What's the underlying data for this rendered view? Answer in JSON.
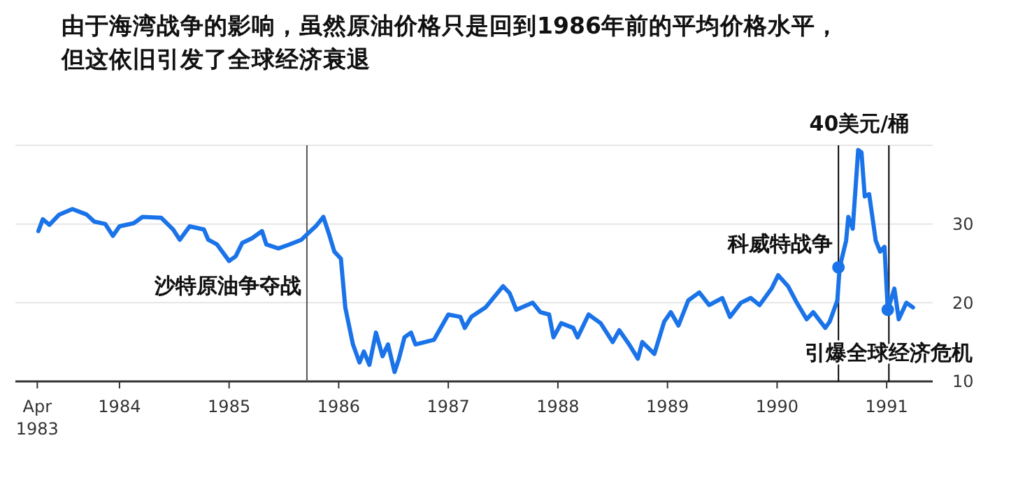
{
  "chart_data": {
    "type": "line",
    "title": "由于海湾战争的影响，虽然原油价格只是回到1986年前的平均价格水平，",
    "subtitle": "但这依旧引发了全球经济衰退",
    "xlim": [
      1983.05,
      1991.42
    ],
    "xticks": [
      {
        "value": 1983.25,
        "label": "Apr\n1983"
      },
      1984,
      1985,
      1986,
      1987,
      1988,
      1989,
      1990,
      1991
    ],
    "ylim": [
      10,
      40
    ],
    "yticks": [
      10,
      20,
      30,
      {
        "value": 40,
        "label": null
      }
    ],
    "grid": "y",
    "marker": "none",
    "line_style": "solid",
    "series": [
      {
        "color": "#1a73e8",
        "x": [
          1983.26,
          1983.3,
          1983.36,
          1983.45,
          1983.57,
          1983.7,
          1983.77,
          1983.87,
          1983.94,
          1984.0,
          1984.13,
          1984.21,
          1984.38,
          1984.49,
          1984.55,
          1984.64,
          1984.77,
          1984.81,
          1984.89,
          1985.0,
          1985.06,
          1985.12,
          1985.21,
          1985.3,
          1985.34,
          1985.45,
          1985.55,
          1985.66,
          1985.72,
          1985.79,
          1985.86,
          1985.91,
          1985.96,
          1986.02,
          1986.06,
          1986.13,
          1986.19,
          1986.23,
          1986.28,
          1986.34,
          1986.4,
          1986.45,
          1986.51,
          1986.55,
          1986.6,
          1986.66,
          1986.7,
          1986.87,
          1987.0,
          1987.11,
          1987.15,
          1987.21,
          1987.34,
          1987.5,
          1987.56,
          1987.62,
          1987.77,
          1987.84,
          1987.92,
          1987.96,
          1988.03,
          1988.14,
          1988.18,
          1988.28,
          1988.39,
          1988.5,
          1988.56,
          1988.65,
          1988.73,
          1988.77,
          1988.88,
          1988.97,
          1989.03,
          1989.1,
          1989.19,
          1989.29,
          1989.38,
          1989.5,
          1989.57,
          1989.67,
          1989.76,
          1989.84,
          1989.95,
          1990.01,
          1990.1,
          1990.18,
          1990.27,
          1990.33,
          1990.44,
          1990.48,
          1990.55,
          1990.57,
          1990.63,
          1990.65,
          1990.69,
          1990.74,
          1990.77,
          1990.8,
          1990.84,
          1990.9,
          1990.94,
          1990.98,
          1991.01,
          1991.07,
          1991.11,
          1991.18,
          1991.24
        ],
        "values": [
          29.1,
          30.6,
          29.9,
          31.2,
          31.9,
          31.2,
          30.3,
          30,
          28.5,
          29.7,
          30.1,
          30.9,
          30.8,
          29.3,
          28,
          29.7,
          29.3,
          28,
          27.4,
          25.3,
          25.9,
          27.6,
          28.2,
          29.1,
          27.4,
          26.9,
          27.4,
          28,
          28.8,
          29.7,
          30.9,
          28.8,
          26.5,
          25.6,
          19.4,
          14.7,
          12.4,
          13.8,
          12.1,
          16.2,
          13.2,
          14.7,
          11.2,
          12.9,
          15.6,
          16.2,
          14.7,
          15.3,
          18.5,
          18.2,
          16.8,
          18.2,
          19.4,
          22.1,
          21.2,
          19.1,
          20,
          18.8,
          18.5,
          15.6,
          17.4,
          16.8,
          15.6,
          18.5,
          17.4,
          15,
          16.5,
          14.7,
          12.9,
          15,
          13.5,
          17.6,
          18.8,
          17.1,
          20.3,
          21.3,
          19.7,
          20.6,
          18.2,
          20,
          20.6,
          19.7,
          21.8,
          23.5,
          22.1,
          20,
          17.9,
          18.8,
          16.8,
          17.6,
          20.3,
          24.4,
          27.9,
          30.9,
          29.4,
          39.4,
          39.1,
          33.5,
          33.8,
          27.9,
          26.5,
          27.1,
          19.1,
          21.8,
          17.9,
          20,
          19.4
        ]
      },
      {
        "type": "scatter",
        "color": "#1a73e8",
        "marker": "circle",
        "x": [
          1990.56,
          1991.01
        ],
        "values": [
          24.5,
          19.1
        ]
      }
    ],
    "ref_lines": [
      {
        "axis": "x",
        "value": 1985.71,
        "color": "#555555"
      },
      {
        "axis": "x",
        "value": 1990.56,
        "color": "#000000"
      },
      {
        "axis": "x",
        "value": 1991.02,
        "color": "#000000"
      }
    ],
    "annotations": [
      {
        "text": "沙特原油争夺战",
        "x": 1985.71,
        "y": 22
      },
      {
        "text": "科威特战争",
        "x": 1990.56,
        "y": 24.5
      },
      {
        "text": "40美元/桶",
        "x": 1990.75,
        "y": 39.4
      },
      {
        "text": "引爆全球经济危机",
        "x": 1991.02,
        "y": 13.8
      }
    ]
  }
}
